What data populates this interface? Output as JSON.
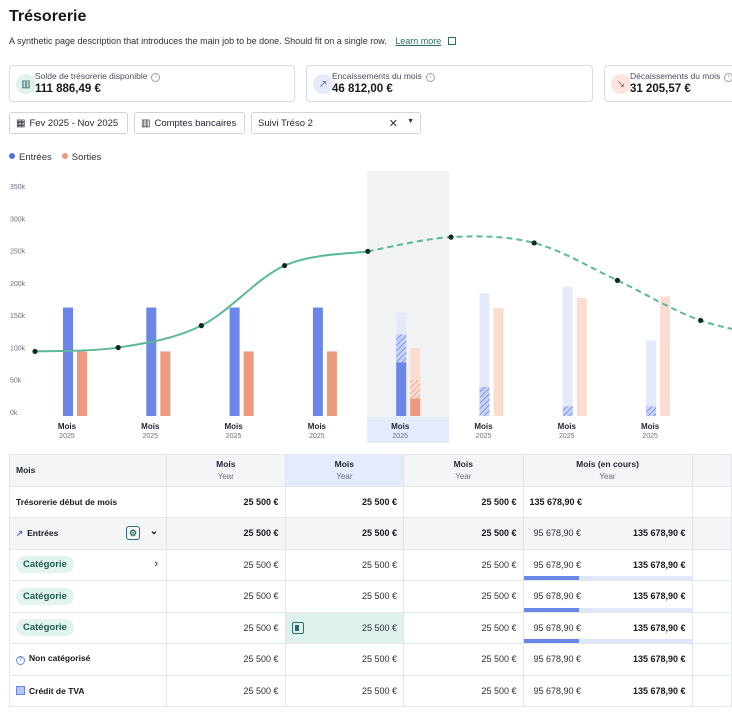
{
  "header": {
    "title": "Trésorerie",
    "subtitle": "A synthetic page description that introduces the main job to be done. Should fit on a single row.",
    "learn_more": "Learn more"
  },
  "kpis": [
    {
      "label": "Solde de trésorerie disponible",
      "value": "111 886,49 €",
      "icon": "bank-icon"
    },
    {
      "label": "Encaissements du mois",
      "value": "46 812,00 €",
      "icon": "trend-up-icon"
    },
    {
      "label": "Décaissements du mois",
      "value": "31 205,57 €",
      "icon": "trend-down-icon"
    }
  ],
  "filters": {
    "period": "Fev 2025 - Nov 2025",
    "accounts": "Comptes bancaires",
    "view": "Suivi Tréso 2"
  },
  "legend": {
    "in": "Entrées",
    "out": "Sorties"
  },
  "colors": {
    "in": "#6a86e8",
    "in_light": "#e4e9fb",
    "out": "#ee9a80",
    "out_light": "#fbdcd1",
    "line": "#5bb89a",
    "dot": "#0e2a22"
  },
  "chart_data": {
    "type": "bar",
    "yticks": [
      "0k",
      "50k",
      "100k",
      "150k",
      "200k",
      "250k",
      "300k",
      "350k"
    ],
    "ylim": [
      0,
      350000
    ],
    "categories": [
      {
        "label": "Mois",
        "sub": "2025"
      },
      {
        "label": "Mois",
        "sub": "2025"
      },
      {
        "label": "Mois",
        "sub": "2025"
      },
      {
        "label": "Mois",
        "sub": "2025"
      },
      {
        "label": "Mois",
        "sub": "2025"
      },
      {
        "label": "Mois",
        "sub": "2025"
      },
      {
        "label": "Mois",
        "sub": "2025"
      },
      {
        "label": "Mois",
        "sub": "2025"
      }
    ],
    "current_index": 4,
    "series": [
      {
        "name": "Entrées",
        "values": [
          168000,
          168000,
          168000,
          168000,
          160000,
          190000,
          200000,
          117000
        ],
        "realized": [
          168000,
          168000,
          168000,
          168000,
          83000,
          45000,
          15000,
          15000
        ]
      },
      {
        "name": "Sorties",
        "values": [
          100000,
          100000,
          100000,
          100000,
          105000,
          167000,
          183000,
          185000
        ],
        "realized": [
          100000,
          100000,
          100000,
          100000,
          27000,
          0,
          0,
          0
        ]
      }
    ],
    "balance": [
      100000,
      106000,
      140000,
      233000,
      255000,
      277000,
      268000,
      210000,
      148000,
      120000
    ]
  },
  "table": {
    "header": [
      {
        "label": "Mois",
        "sub": ""
      },
      {
        "label": "Mois",
        "sub": "Year"
      },
      {
        "label": "Mois",
        "sub": "Year"
      },
      {
        "label": "Mois",
        "sub": "Year"
      },
      {
        "label": "Mois (en cours)",
        "sub": "Year"
      }
    ],
    "rows": [
      {
        "label": "Trésorerie début de mois",
        "c1": "25 500 €",
        "c2": "25 500 €",
        "c3": "25 500 €",
        "c4a": "135 678,90 €",
        "c4b": ""
      },
      {
        "label": "Entrées",
        "c1": "25 500 €",
        "c2": "25 500 €",
        "c3": "25 500 €",
        "c4a": "95 678,90 €",
        "c4b": "135 678,90 €"
      },
      {
        "label": "Catégorie",
        "c1": "25 500 €",
        "c2": "25 500 €",
        "c3": "25 500 €",
        "c4a": "95 678,90 €",
        "c4b": "135 678,90 €"
      },
      {
        "label": "Catégorie",
        "c1": "25 500 €",
        "c2": "25 500 €",
        "c3": "25 500 €",
        "c4a": "95 678,90 €",
        "c4b": "135 678,90 €"
      },
      {
        "label": "Catégorie",
        "c1": "25 500 €",
        "c2": "25 500 €",
        "c3": "25 500 €",
        "c4a": "95 678,90 €",
        "c4b": "135 678,90 €"
      },
      {
        "label": "Non catégorisé",
        "c1": "25 500 €",
        "c2": "25 500 €",
        "c3": "25 500 €",
        "c4a": "95 678,90 €",
        "c4b": "135 678,90 €"
      },
      {
        "label": "Crédit de TVA",
        "c1": "25 500 €",
        "c2": "25 500 €",
        "c3": "25 500 €",
        "c4a": "95 678,90 €",
        "c4b": "135 678,90 €"
      }
    ],
    "progress": 0.33
  }
}
